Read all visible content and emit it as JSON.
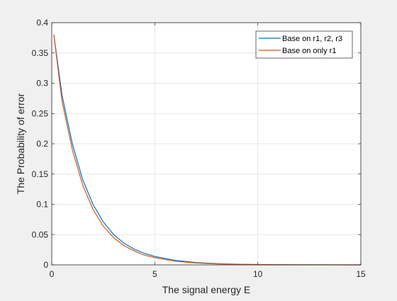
{
  "chart_data": {
    "type": "line",
    "title": "",
    "xlabel": "The signal energy E",
    "ylabel": "The Probability of error",
    "xlim": [
      0,
      15
    ],
    "ylim": [
      0,
      0.4
    ],
    "xticks": [
      "0",
      "5",
      "10",
      "15"
    ],
    "yticks": [
      "0",
      "0.05",
      "0.1",
      "0.15",
      "0.2",
      "0.25",
      "0.3",
      "0.35",
      "0.4"
    ],
    "grid": true,
    "legend_position": "top-right",
    "series": [
      {
        "name": "Base on r1, r2, r3",
        "color": "#0072bd",
        "x": [
          0.1,
          0.5,
          1,
          1.5,
          2,
          2.5,
          3,
          3.5,
          4,
          4.5,
          5,
          6,
          7,
          8,
          9,
          10,
          11,
          12,
          13,
          14,
          15
        ],
        "y": [
          0.38,
          0.28,
          0.2,
          0.141,
          0.1,
          0.071,
          0.05,
          0.036,
          0.026,
          0.019,
          0.014,
          0.0074,
          0.0039,
          0.0021,
          0.0011,
          0.0006,
          0.0003,
          0.0002,
          0.0001,
          5e-05,
          3e-05
        ]
      },
      {
        "name": "Base on only r1",
        "color": "#d95319",
        "x": [
          0.1,
          0.5,
          1,
          1.5,
          2,
          2.5,
          3,
          3.5,
          4,
          4.5,
          5,
          6,
          7,
          8,
          9,
          10,
          11,
          12,
          13,
          14,
          15
        ],
        "y": [
          0.38,
          0.27,
          0.19,
          0.132,
          0.092,
          0.064,
          0.045,
          0.032,
          0.023,
          0.016,
          0.012,
          0.0061,
          0.0031,
          0.0016,
          0.0008,
          0.0004,
          0.0002,
          0.0001,
          5e-05,
          3e-05,
          1e-05
        ]
      }
    ]
  }
}
